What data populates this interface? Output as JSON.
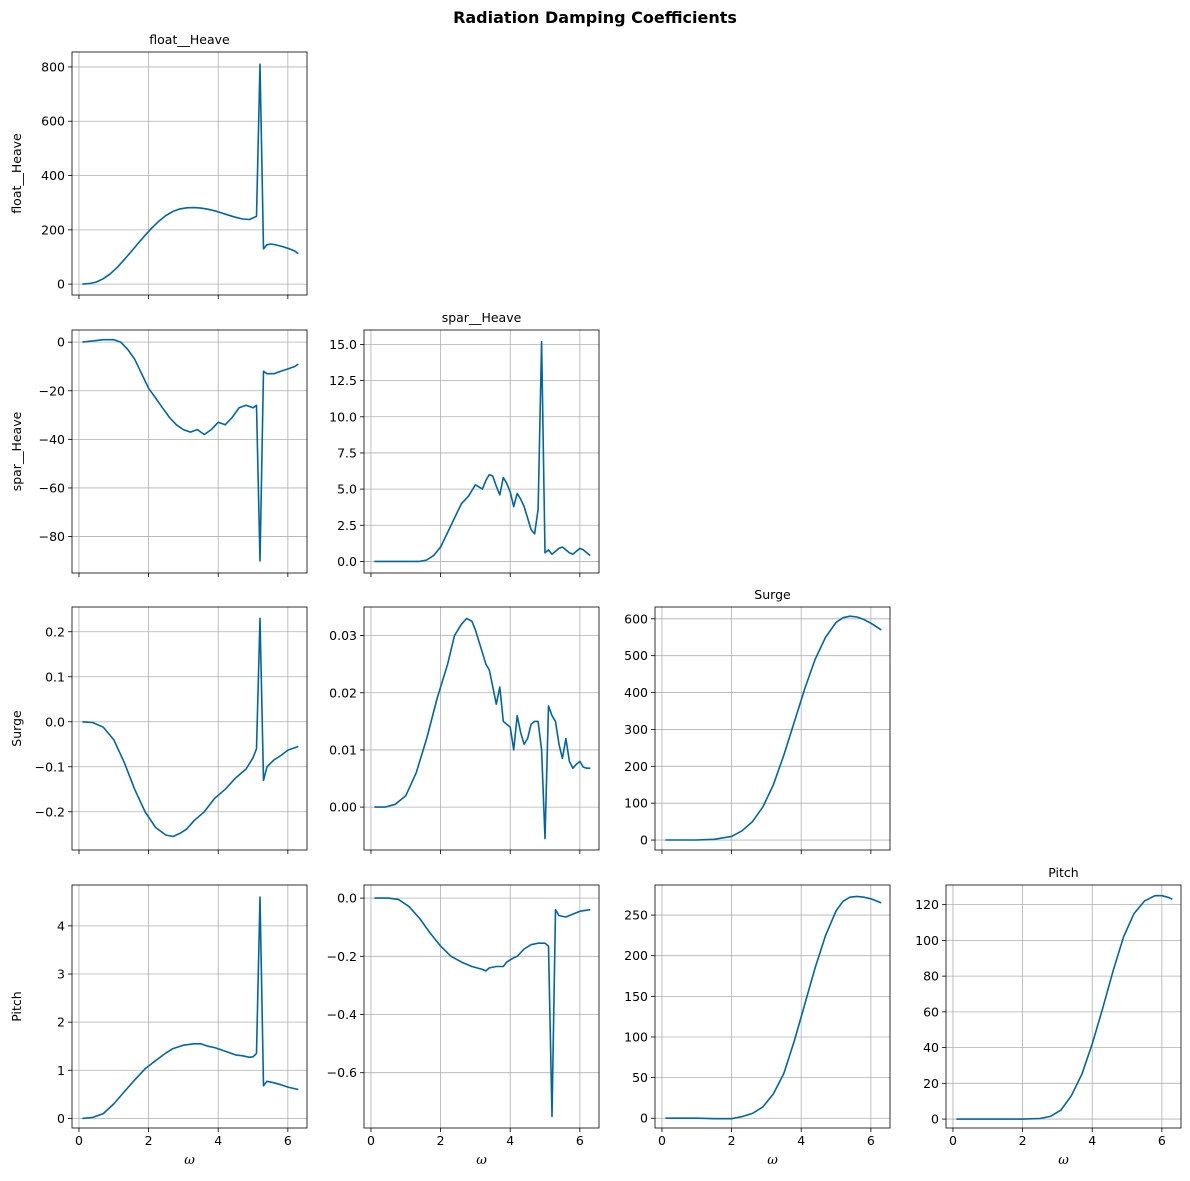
{
  "figure": {
    "suptitle": "Radiation Damping Coefficients",
    "line_color": "#0066a0",
    "grid_color": "#b0b0b0"
  },
  "chart_data": [
    {
      "type": "line",
      "row": 0,
      "col": 0,
      "title": "float__Heave",
      "ylabel": "float__Heave",
      "xlabel": "",
      "xlim": [
        -0.2,
        6.55
      ],
      "ylim": [
        -40,
        855
      ],
      "grid": true,
      "xticks": [
        0,
        2,
        4,
        6
      ],
      "show_xticklabels": false,
      "yticks": [
        0,
        200,
        400,
        600,
        800
      ],
      "yticklabels": [
        "0",
        "200",
        "400",
        "600",
        "800"
      ],
      "series": [
        {
          "x": [
            0.1,
            0.3,
            0.5,
            0.7,
            0.9,
            1.1,
            1.3,
            1.5,
            1.7,
            1.9,
            2.1,
            2.3,
            2.5,
            2.7,
            2.9,
            3.1,
            3.3,
            3.5,
            3.7,
            3.9,
            4.1,
            4.3,
            4.5,
            4.7,
            4.9,
            5.1,
            5.2,
            5.3,
            5.4,
            5.5,
            5.6,
            5.8,
            6.0,
            6.2,
            6.3
          ],
          "y": [
            0,
            2,
            8,
            20,
            38,
            62,
            90,
            120,
            150,
            180,
            208,
            232,
            253,
            268,
            277,
            281,
            282,
            280,
            276,
            270,
            262,
            254,
            246,
            240,
            238,
            250,
            810,
            130,
            145,
            148,
            146,
            140,
            132,
            122,
            112
          ]
        }
      ]
    },
    {
      "type": "line",
      "row": 1,
      "col": 0,
      "title": "",
      "ylabel": "spar__Heave",
      "xlabel": "",
      "xlim": [
        -0.2,
        6.55
      ],
      "ylim": [
        -95,
        5
      ],
      "grid": true,
      "xticks": [
        0,
        2,
        4,
        6
      ],
      "show_xticklabels": false,
      "yticks": [
        0,
        -20,
        -40,
        -60,
        -80
      ],
      "yticklabels": [
        "0",
        "−20",
        "−40",
        "−60",
        "−80"
      ],
      "series": [
        {
          "x": [
            0.1,
            0.4,
            0.7,
            1.0,
            1.2,
            1.4,
            1.6,
            1.8,
            2.0,
            2.2,
            2.4,
            2.6,
            2.8,
            3.0,
            3.2,
            3.4,
            3.6,
            3.8,
            4.0,
            4.2,
            4.4,
            4.6,
            4.8,
            5.0,
            5.1,
            5.2,
            5.3,
            5.4,
            5.6,
            5.8,
            6.0,
            6.2,
            6.3
          ],
          "y": [
            0,
            0.5,
            1,
            1,
            0,
            -3,
            -7,
            -13,
            -19,
            -23,
            -27,
            -31,
            -34,
            -36,
            -37,
            -36,
            -38,
            -36,
            -33,
            -34,
            -31,
            -27,
            -26,
            -27,
            -26,
            -90,
            -12,
            -13,
            -13,
            -12,
            -11,
            -10,
            -9
          ]
        }
      ]
    },
    {
      "type": "line",
      "row": 1,
      "col": 1,
      "title": "spar__Heave",
      "ylabel": "",
      "xlabel": "",
      "xlim": [
        -0.2,
        6.55
      ],
      "ylim": [
        -0.8,
        16
      ],
      "grid": true,
      "xticks": [
        0,
        2,
        4,
        6
      ],
      "show_xticklabels": false,
      "yticks": [
        0,
        2.5,
        5,
        7.5,
        10,
        12.5,
        15
      ],
      "yticklabels": [
        "0.0",
        "2.5",
        "5.0",
        "7.5",
        "10.0",
        "12.5",
        "15.0"
      ],
      "series": [
        {
          "x": [
            0.1,
            0.5,
            1.0,
            1.4,
            1.6,
            1.8,
            2.0,
            2.2,
            2.4,
            2.6,
            2.8,
            3.0,
            3.2,
            3.3,
            3.4,
            3.5,
            3.6,
            3.7,
            3.8,
            3.9,
            4.0,
            4.1,
            4.2,
            4.3,
            4.4,
            4.5,
            4.6,
            4.7,
            4.8,
            4.9,
            5.0,
            5.1,
            5.2,
            5.3,
            5.4,
            5.5,
            5.6,
            5.7,
            5.8,
            5.9,
            6.0,
            6.1,
            6.2,
            6.3
          ],
          "y": [
            0,
            0,
            0,
            0,
            0.1,
            0.4,
            1.0,
            2.0,
            3.0,
            4.0,
            4.5,
            5.3,
            5.0,
            5.6,
            6.0,
            5.9,
            5.2,
            4.6,
            5.8,
            5.4,
            4.8,
            3.8,
            4.7,
            4.3,
            3.8,
            3.0,
            2.2,
            1.9,
            3.6,
            15.2,
            0.6,
            0.8,
            0.5,
            0.7,
            0.9,
            1.0,
            0.8,
            0.6,
            0.5,
            0.7,
            0.9,
            0.8,
            0.6,
            0.4
          ]
        }
      ]
    },
    {
      "type": "line",
      "row": 2,
      "col": 0,
      "title": "",
      "ylabel": "Surge",
      "xlabel": "",
      "xlim": [
        -0.2,
        6.55
      ],
      "ylim": [
        -0.285,
        0.255
      ],
      "grid": true,
      "xticks": [
        0,
        2,
        4,
        6
      ],
      "show_xticklabels": false,
      "yticks": [
        0.2,
        0.1,
        0.0,
        -0.1,
        -0.2
      ],
      "yticklabels": [
        "0.2",
        "0.1",
        "0.0",
        "−0.1",
        "−0.2"
      ],
      "series": [
        {
          "x": [
            0.1,
            0.4,
            0.7,
            1.0,
            1.3,
            1.6,
            1.9,
            2.2,
            2.5,
            2.7,
            2.9,
            3.1,
            3.3,
            3.6,
            3.9,
            4.2,
            4.5,
            4.8,
            5.0,
            5.1,
            5.2,
            5.3,
            5.4,
            5.6,
            5.8,
            6.0,
            6.3
          ],
          "y": [
            0,
            -0.002,
            -0.012,
            -0.04,
            -0.09,
            -0.15,
            -0.2,
            -0.235,
            -0.252,
            -0.255,
            -0.248,
            -0.238,
            -0.22,
            -0.2,
            -0.17,
            -0.15,
            -0.125,
            -0.105,
            -0.08,
            -0.06,
            0.23,
            -0.13,
            -0.1,
            -0.085,
            -0.075,
            -0.063,
            -0.055
          ]
        }
      ]
    },
    {
      "type": "line",
      "row": 2,
      "col": 1,
      "title": "",
      "ylabel": "",
      "xlabel": "",
      "xlim": [
        -0.2,
        6.55
      ],
      "ylim": [
        -0.0075,
        0.035
      ],
      "grid": true,
      "xticks": [
        0,
        2,
        4,
        6
      ],
      "show_xticklabels": false,
      "yticks": [
        0.0,
        0.01,
        0.02,
        0.03
      ],
      "yticklabels": [
        "0.00",
        "0.01",
        "0.02",
        "0.03"
      ],
      "series": [
        {
          "x": [
            0.1,
            0.4,
            0.7,
            1.0,
            1.3,
            1.6,
            1.9,
            2.2,
            2.4,
            2.6,
            2.75,
            2.9,
            3.0,
            3.1,
            3.2,
            3.3,
            3.4,
            3.5,
            3.6,
            3.7,
            3.8,
            3.9,
            4.0,
            4.1,
            4.2,
            4.3,
            4.4,
            4.5,
            4.6,
            4.7,
            4.8,
            4.9,
            5.0,
            5.1,
            5.2,
            5.3,
            5.4,
            5.5,
            5.6,
            5.7,
            5.8,
            5.9,
            6.0,
            6.1,
            6.2,
            6.3
          ],
          "y": [
            0,
            0,
            0.0005,
            0.002,
            0.006,
            0.012,
            0.019,
            0.025,
            0.03,
            0.032,
            0.033,
            0.0325,
            0.031,
            0.029,
            0.027,
            0.025,
            0.024,
            0.021,
            0.018,
            0.021,
            0.015,
            0.0145,
            0.014,
            0.01,
            0.016,
            0.013,
            0.011,
            0.012,
            0.0145,
            0.015,
            0.015,
            0.01,
            -0.0055,
            0.0177,
            0.016,
            0.015,
            0.011,
            0.0085,
            0.012,
            0.008,
            0.0068,
            0.0075,
            0.008,
            0.007,
            0.0068,
            0.0068
          ]
        }
      ]
    },
    {
      "type": "line",
      "row": 2,
      "col": 2,
      "title": "Surge",
      "ylabel": "",
      "xlabel": "",
      "xlim": [
        -0.2,
        6.55
      ],
      "ylim": [
        -27,
        632
      ],
      "grid": true,
      "xticks": [
        0,
        2,
        4,
        6
      ],
      "show_xticklabels": false,
      "yticks": [
        0,
        100,
        200,
        300,
        400,
        500,
        600
      ],
      "yticklabels": [
        "0",
        "100",
        "200",
        "300",
        "400",
        "500",
        "600"
      ],
      "series": [
        {
          "x": [
            0.1,
            0.5,
            1.0,
            1.5,
            2.0,
            2.3,
            2.6,
            2.9,
            3.2,
            3.5,
            3.8,
            4.1,
            4.4,
            4.7,
            5.0,
            5.2,
            5.4,
            5.6,
            5.8,
            6.0,
            6.3
          ],
          "y": [
            0,
            0,
            0,
            2,
            10,
            25,
            50,
            90,
            150,
            230,
            320,
            410,
            490,
            550,
            590,
            603,
            607,
            605,
            598,
            588,
            570
          ]
        }
      ]
    },
    {
      "type": "line",
      "row": 3,
      "col": 0,
      "title": "",
      "ylabel": "Pitch",
      "xlabel": "ω",
      "xlim": [
        -0.2,
        6.55
      ],
      "ylim": [
        -0.2,
        4.85
      ],
      "grid": true,
      "xticks": [
        0,
        2,
        4,
        6
      ],
      "xticklabels": [
        "0",
        "2",
        "4",
        "6"
      ],
      "show_xticklabels": true,
      "yticks": [
        0,
        1,
        2,
        3,
        4
      ],
      "yticklabels": [
        "0",
        "1",
        "2",
        "3",
        "4"
      ],
      "series": [
        {
          "x": [
            0.1,
            0.4,
            0.7,
            1.0,
            1.3,
            1.6,
            1.9,
            2.2,
            2.5,
            2.7,
            3.0,
            3.3,
            3.5,
            3.7,
            3.9,
            4.1,
            4.3,
            4.5,
            4.7,
            4.9,
            5.0,
            5.1,
            5.2,
            5.3,
            5.4,
            5.6,
            5.8,
            6.0,
            6.3
          ],
          "y": [
            0,
            0.02,
            0.1,
            0.3,
            0.55,
            0.8,
            1.03,
            1.2,
            1.36,
            1.45,
            1.52,
            1.55,
            1.55,
            1.5,
            1.47,
            1.42,
            1.37,
            1.32,
            1.3,
            1.27,
            1.28,
            1.35,
            4.6,
            0.68,
            0.77,
            0.74,
            0.7,
            0.65,
            0.6
          ]
        }
      ]
    },
    {
      "type": "line",
      "row": 3,
      "col": 1,
      "title": "",
      "ylabel": "",
      "xlabel": "ω",
      "xlim": [
        -0.2,
        6.55
      ],
      "ylim": [
        -0.79,
        0.045
      ],
      "grid": true,
      "xticks": [
        0,
        2,
        4,
        6
      ],
      "xticklabels": [
        "0",
        "2",
        "4",
        "6"
      ],
      "show_xticklabels": true,
      "yticks": [
        0.0,
        -0.2,
        -0.4,
        -0.6
      ],
      "yticklabels": [
        "0.0",
        "−0.2",
        "−0.4",
        "−0.6"
      ],
      "series": [
        {
          "x": [
            0.1,
            0.5,
            0.8,
            1.1,
            1.4,
            1.7,
            2.0,
            2.3,
            2.6,
            2.9,
            3.2,
            3.3,
            3.4,
            3.6,
            3.8,
            3.9,
            4.1,
            4.2,
            4.4,
            4.6,
            4.8,
            5.0,
            5.1,
            5.2,
            5.3,
            5.4,
            5.6,
            5.8,
            6.0,
            6.3
          ],
          "y": [
            0,
            0,
            -0.005,
            -0.03,
            -0.07,
            -0.12,
            -0.165,
            -0.2,
            -0.22,
            -0.235,
            -0.245,
            -0.25,
            -0.24,
            -0.235,
            -0.235,
            -0.22,
            -0.205,
            -0.2,
            -0.175,
            -0.16,
            -0.155,
            -0.155,
            -0.165,
            -0.75,
            -0.04,
            -0.06,
            -0.065,
            -0.055,
            -0.045,
            -0.04
          ]
        }
      ]
    },
    {
      "type": "line",
      "row": 3,
      "col": 2,
      "title": "",
      "ylabel": "",
      "xlabel": "ω",
      "xlim": [
        -0.2,
        6.55
      ],
      "ylim": [
        -12,
        287
      ],
      "grid": true,
      "xticks": [
        0,
        2,
        4,
        6
      ],
      "xticklabels": [
        "0",
        "2",
        "4",
        "6"
      ],
      "show_xticklabels": true,
      "yticks": [
        0,
        50,
        100,
        150,
        200,
        250
      ],
      "yticklabels": [
        "0",
        "50",
        "100",
        "150",
        "200",
        "250"
      ],
      "series": [
        {
          "x": [
            0.1,
            0.5,
            1.0,
            1.5,
            2.0,
            2.3,
            2.6,
            2.9,
            3.2,
            3.5,
            3.8,
            4.1,
            4.4,
            4.7,
            5.0,
            5.2,
            5.4,
            5.6,
            5.8,
            6.0,
            6.3
          ],
          "y": [
            0,
            0,
            0,
            -0.5,
            -0.5,
            2,
            6,
            14,
            30,
            55,
            95,
            140,
            185,
            225,
            255,
            267,
            272,
            273,
            272,
            270,
            265
          ]
        }
      ]
    },
    {
      "type": "line",
      "row": 3,
      "col": 3,
      "title": "Pitch",
      "ylabel": "",
      "xlabel": "ω",
      "xlim": [
        -0.2,
        6.55
      ],
      "ylim": [
        -5,
        131
      ],
      "grid": true,
      "xticks": [
        0,
        2,
        4,
        6
      ],
      "xticklabels": [
        "0",
        "2",
        "4",
        "6"
      ],
      "show_xticklabels": true,
      "yticks": [
        0,
        20,
        40,
        60,
        80,
        100,
        120
      ],
      "yticklabels": [
        "0",
        "20",
        "40",
        "60",
        "80",
        "100",
        "120"
      ],
      "series": [
        {
          "x": [
            0.1,
            0.5,
            1.0,
            1.5,
            2.0,
            2.5,
            2.8,
            3.1,
            3.4,
            3.7,
            4.0,
            4.3,
            4.6,
            4.9,
            5.2,
            5.5,
            5.8,
            6.0,
            6.2,
            6.3
          ],
          "y": [
            0,
            0,
            0,
            0,
            0,
            0.3,
            1.5,
            5,
            13,
            25,
            42,
            62,
            83,
            102,
            115,
            122,
            125,
            125,
            124,
            123
          ]
        }
      ]
    }
  ]
}
